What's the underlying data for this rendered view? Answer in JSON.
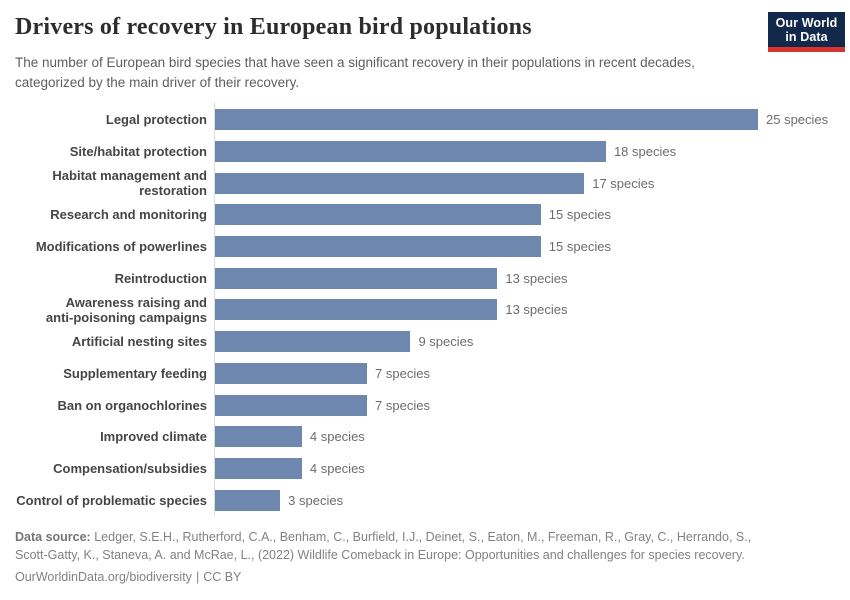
{
  "header": {
    "title": "Drivers of recovery in European bird populations",
    "subtitle": "The number of European bird species that have seen a significant recovery in their populations in recent decades, categorized by the main driver of their recovery.",
    "logo": {
      "line1": "Our World",
      "line2": "in Data",
      "bg_color": "#12294b",
      "accent_color": "#d8352e"
    }
  },
  "chart_data": {
    "type": "bar",
    "orientation": "horizontal",
    "title": "Drivers of recovery in European bird populations",
    "categories": [
      "Legal protection",
      "Site/habitat protection",
      "Habitat management and\nrestoration",
      "Research and monitoring",
      "Modifications of powerlines",
      "Reintroduction",
      "Awareness raising and\nanti-poisoning campaigns",
      "Artificial nesting sites",
      "Supplementary feeding",
      "Ban on organochlorines",
      "Improved climate",
      "Compensation/subsidies",
      "Control of problematic species"
    ],
    "values": [
      25,
      18,
      17,
      15,
      15,
      13,
      13,
      9,
      7,
      7,
      4,
      4,
      3
    ],
    "value_suffix": " species",
    "unit": "species",
    "bar_color": "#6e87af",
    "xlim": [
      0,
      25
    ],
    "grid": false,
    "legend": "none",
    "value_labels": "outside-end"
  },
  "footer": {
    "source_label": "Data source:",
    "source_text": "Ledger, S.E.H., Rutherford, C.A., Benham, C., Burfield, I.J., Deinet, S., Eaton, M., Freeman, R., Gray, C., Herrando, S., Scott-Gatty, K., Staneva, A. and McRae, L., (2022) Wildlife Comeback in Europe: Opportunities and challenges for species recovery.",
    "link_text": "OurWorldinData.org/biodiversity",
    "separator": "|",
    "license_text": "CC BY"
  }
}
